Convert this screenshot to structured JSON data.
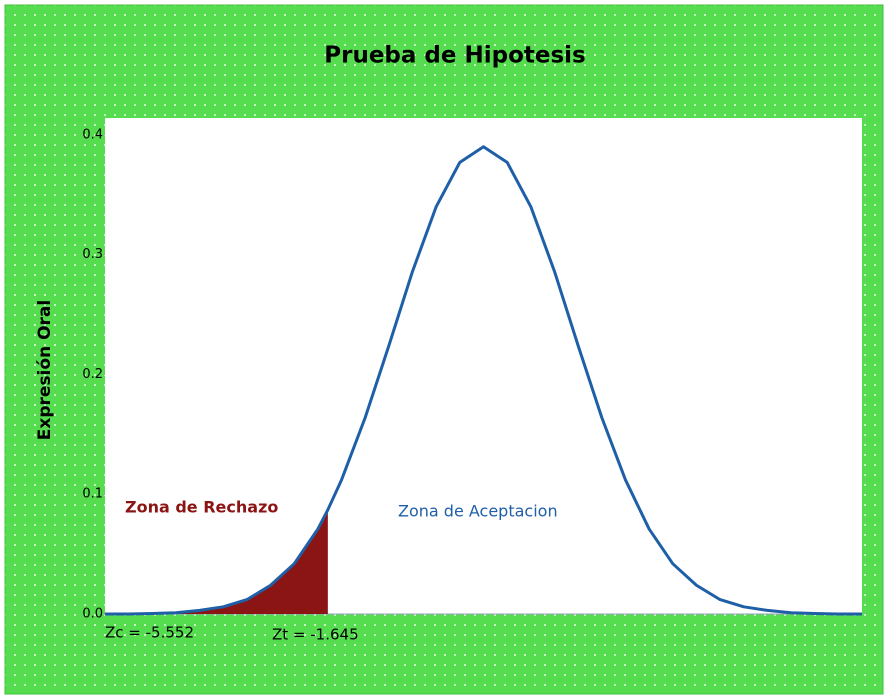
{
  "chart_data": {
    "type": "line",
    "title": "Prueba de Hipotesis",
    "y_label": "Expresión Oral",
    "x": [
      -4,
      -3.75,
      -3.5,
      -3.25,
      -3,
      -2.75,
      -2.5,
      -2.25,
      -2,
      -1.75,
      -1.645,
      -1.5,
      -1.25,
      -1,
      -0.75,
      -0.5,
      -0.25,
      0,
      0.25,
      0.5,
      0.75,
      1,
      1.25,
      1.5,
      1.75,
      2,
      2.25,
      2.5,
      2.75,
      3,
      3.25,
      3.5,
      3.75,
      4
    ],
    "series": [
      {
        "color": "#1f5fa8",
        "values": [
          0,
          0,
          0.0004,
          0.001,
          0.003,
          0.006,
          0.012,
          0.024,
          0.042,
          0.071,
          0.087,
          0.112,
          0.164,
          0.224,
          0.286,
          0.34,
          0.377,
          0.39,
          0.377,
          0.34,
          0.286,
          0.224,
          0.164,
          0.112,
          0.071,
          0.042,
          0.024,
          0.012,
          0.006,
          0.003,
          0.001,
          0.0004,
          0,
          0
        ]
      }
    ],
    "rejection_region": [
      -4,
      -1.645
    ],
    "rejection_color": "#8b1414",
    "xlim": [
      -4,
      4
    ],
    "ylim": [
      0,
      0.414
    ],
    "yticks": [
      {
        "value": 0,
        "label": "0.0"
      },
      0.1,
      0.2,
      0.3,
      0.4
    ],
    "annotations": [
      "Zona de Rechazo",
      "Zona de Aceptacion",
      "Zc = -5.552",
      "Zt = -1.645"
    ]
  }
}
